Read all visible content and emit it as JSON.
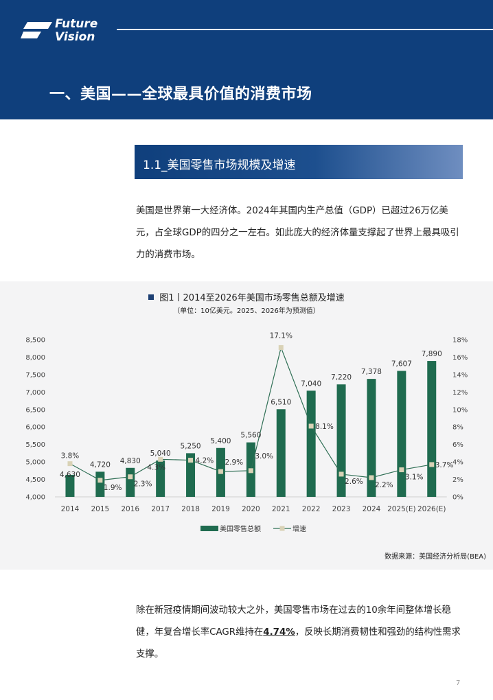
{
  "header": {
    "logo_line1": "Future",
    "logo_line2": "Vision",
    "title": "一、美国——全球最具价值的消费市场"
  },
  "section": {
    "title": "1.1_美国零售市场规模及增速"
  },
  "paragraph1": {
    "text": "美国是世界第一大经济体。2024年其国内生产总值（GDP）已超过26万亿美元，占全球GDP的四分之一左右。如此庞大的经济体量支撑起了世界上最具吸引力的消费市场。"
  },
  "chart_title": "图1丨2014至2026年美国市场零售总额及增速",
  "chart_subtitle": "（单位：10亿美元。2025、2026年为预测值）",
  "chart_data": {
    "type": "bar",
    "categories": [
      "2014",
      "2015",
      "2016",
      "2017",
      "2018",
      "2019",
      "2020",
      "2021",
      "2022",
      "2023",
      "2024",
      "2025(E)",
      "2026(E)"
    ],
    "series": [
      {
        "name": "美国零售总额",
        "type": "bar",
        "axis": "left",
        "values": [
          4630,
          4720,
          4830,
          5040,
          5250,
          5400,
          5560,
          6510,
          7040,
          7220,
          7378,
          7607,
          7890
        ],
        "labels": [
          "4,630",
          "4,720",
          "4,830",
          "5,040",
          "5,250",
          "5,400",
          "5,560",
          "6,510",
          "7,040",
          "7,220",
          "7,378",
          "7,607",
          "7,890"
        ]
      },
      {
        "name": "增速",
        "type": "line",
        "axis": "right",
        "values": [
          3.8,
          1.9,
          2.3,
          4.3,
          4.2,
          2.9,
          3.0,
          17.1,
          8.1,
          2.6,
          2.2,
          3.1,
          3.7
        ],
        "labels": [
          "3.8%",
          "1.9%",
          "2.3%",
          "4.3%",
          "4.2%",
          "2.9%",
          "3.0%",
          "17.1%",
          "8.1%",
          "2.6%",
          "2.2%",
          "3.1%",
          "3.7%"
        ]
      }
    ],
    "y_left_ticks": [
      "8,500",
      "8,000",
      "7,500",
      "7,000",
      "6,500",
      "6,000",
      "5,500",
      "5,000",
      "4,500",
      "4,000"
    ],
    "y_right_ticks": [
      "18%",
      "16%",
      "14%",
      "12%",
      "10%",
      "8%",
      "6%",
      "4%",
      "2%",
      "0%"
    ],
    "ylim_left": [
      4000,
      8500
    ],
    "ylim_right": [
      0,
      18
    ],
    "bar_color": "#1f6b4f",
    "line_color": "#2f6f55",
    "marker_color": "#d9d2b6",
    "legend_position": "bottom",
    "grid": false
  },
  "source": "数据来源：美国经济分析局(BEA)",
  "paragraph2": {
    "before": "除在新冠疫情期间波动较大之外，美国零售市场在过去的10余年间整体增长稳健，年复合增长率CAGR维持在",
    "highlight": "4.74%",
    "after": "，反映长期消费韧性和强劲的结构性需求支撑。"
  },
  "page_number": "7"
}
